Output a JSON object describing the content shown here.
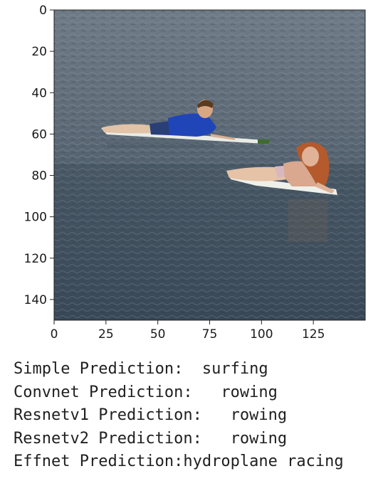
{
  "plot": {
    "x_ticks": [
      "0",
      "25",
      "50",
      "75",
      "100",
      "125"
    ],
    "y_ticks": [
      "0",
      "20",
      "40",
      "60",
      "80",
      "100",
      "120",
      "140"
    ]
  },
  "output_lines": [
    "Simple Prediction:  surfing",
    "Convnet Prediction:   rowing",
    "Resnetv1 Prediction:   rowing",
    "Resnetv2 Prediction:   rowing",
    "Effnet Prediction:hydroplane racing"
  ]
}
